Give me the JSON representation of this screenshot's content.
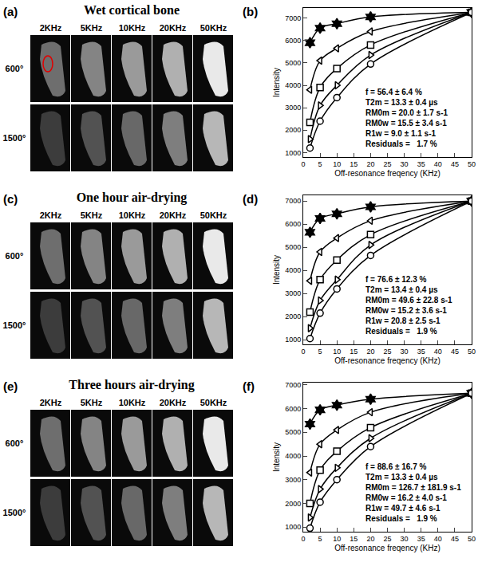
{
  "image_panels": [
    {
      "letter": "(a)",
      "title": "Wet cortical bone",
      "columns": [
        "2KHz",
        "5KHz",
        "10KHz",
        "20KHz",
        "50KHz"
      ],
      "rows": [
        "600°",
        "1500°"
      ]
    },
    {
      "letter": "(c)",
      "title": "One hour air-drying",
      "columns": [
        "2KHz",
        "5KHz",
        "10KHz",
        "20KHz",
        "50KHz"
      ],
      "rows": [
        "600°",
        "1500°"
      ]
    },
    {
      "letter": "(e)",
      "title": "Three hours air-drying",
      "columns": [
        "2KHz",
        "5KHz",
        "10KHz",
        "20KHz",
        "50KHz"
      ],
      "rows": [
        "600°",
        "1500°"
      ]
    }
  ],
  "chart_data": [
    {
      "letter": "(b)",
      "type": "line",
      "xlabel": "Off-resonance freqency (KHz)",
      "ylabel": "Intensity",
      "x": [
        2,
        5,
        10,
        20,
        50
      ],
      "series": [
        {
          "color": "#000000",
          "marker": "star",
          "values": [
            5900,
            6550,
            6750,
            7050,
            7250
          ]
        },
        {
          "color": "#000000",
          "marker": "triangle-left",
          "values": [
            3800,
            5100,
            5650,
            6400,
            7250
          ]
        },
        {
          "color": "#000000",
          "marker": "square",
          "values": [
            2350,
            3900,
            4750,
            5800,
            7250
          ]
        },
        {
          "color": "#000000",
          "marker": "triangle-right",
          "values": [
            1600,
            3100,
            4000,
            5350,
            7250
          ]
        },
        {
          "color": "#000000",
          "marker": "circle",
          "values": [
            1200,
            2400,
            3450,
            4950,
            7250
          ]
        }
      ],
      "xlim": [
        0,
        50
      ],
      "xticks": [
        0,
        5,
        10,
        15,
        20,
        25,
        30,
        35,
        40,
        45,
        50
      ],
      "ylim": [
        800,
        7450
      ],
      "yticks": [
        1000,
        2000,
        3000,
        4000,
        5000,
        6000,
        7000
      ],
      "annotations": [
        "f = 56.4 ± 6.4 %",
        "T2m = 13.3 ± 0.4 µs",
        "RM0m = 20.0 ± 1.7 s-1",
        "RM0w = 15.5 ± 3.4 s-1",
        "R1w = 9.0 ± 1.1 s-1",
        "Residuals =   1.7 %"
      ]
    },
    {
      "letter": "(d)",
      "type": "line",
      "xlabel": "Off-resonance freqency (KHz)",
      "ylabel": "Intensity",
      "x": [
        2,
        5,
        10,
        20,
        50
      ],
      "series": [
        {
          "color": "#000000",
          "marker": "star",
          "values": [
            5650,
            6250,
            6450,
            6750,
            7000
          ]
        },
        {
          "color": "#000000",
          "marker": "triangle-left",
          "values": [
            3550,
            4800,
            5400,
            6150,
            7000
          ]
        },
        {
          "color": "#000000",
          "marker": "square",
          "values": [
            2200,
            3600,
            4450,
            5550,
            7000
          ]
        },
        {
          "color": "#000000",
          "marker": "triangle-right",
          "values": [
            1500,
            2700,
            3600,
            5100,
            7000
          ]
        },
        {
          "color": "#000000",
          "marker": "circle",
          "values": [
            1050,
            2150,
            3200,
            4650,
            7000
          ]
        }
      ],
      "xlim": [
        0,
        50
      ],
      "xticks": [
        0,
        5,
        10,
        15,
        20,
        25,
        30,
        35,
        40,
        45,
        50
      ],
      "ylim": [
        800,
        7250
      ],
      "yticks": [
        1000,
        2000,
        3000,
        4000,
        5000,
        6000,
        7000
      ],
      "annotations": [
        "f = 76.6 ± 12.3 %",
        "T2m = 13.4 ± 0.4 µs",
        "RM0m = 49.6 ± 22.8 s-1",
        "RM0w = 15.2 ± 3.6 s-1",
        "R1w = 20.8 ± 2.5 s-1",
        "Residuals =   1.9 %"
      ]
    },
    {
      "letter": "(f)",
      "type": "line",
      "xlabel": "Off-resonance freqency (KHz)",
      "ylabel": "Intensity",
      "x": [
        2,
        5,
        10,
        20,
        50
      ],
      "series": [
        {
          "color": "#000000",
          "marker": "star",
          "values": [
            5350,
            5950,
            6150,
            6400,
            6650
          ]
        },
        {
          "color": "#000000",
          "marker": "triangle-left",
          "values": [
            3300,
            4500,
            5100,
            5850,
            6650
          ]
        },
        {
          "color": "#000000",
          "marker": "square",
          "values": [
            2000,
            3400,
            4200,
            5200,
            6650
          ]
        },
        {
          "color": "#000000",
          "marker": "triangle-right",
          "values": [
            1400,
            2600,
            3500,
            4750,
            6650
          ]
        },
        {
          "color": "#000000",
          "marker": "circle",
          "values": [
            950,
            2050,
            3000,
            4400,
            6650
          ]
        }
      ],
      "xlim": [
        0,
        50
      ],
      "xticks": [
        0,
        5,
        10,
        15,
        20,
        25,
        30,
        35,
        40,
        45,
        50
      ],
      "ylim": [
        800,
        7100
      ],
      "yticks": [
        1000,
        2000,
        3000,
        4000,
        5000,
        6000,
        7000
      ],
      "annotations": [
        "f = 88.6 ± 16.7 %",
        "T2m = 13.3 ± 0.4 µs",
        "RM0m = 126.7 ± 181.9 s-1",
        "RM0w = 16.2 ± 4.0 s-1",
        "R1w = 49.7 ± 4.6 s-1",
        "Residuals =   1.9 %"
      ]
    }
  ]
}
